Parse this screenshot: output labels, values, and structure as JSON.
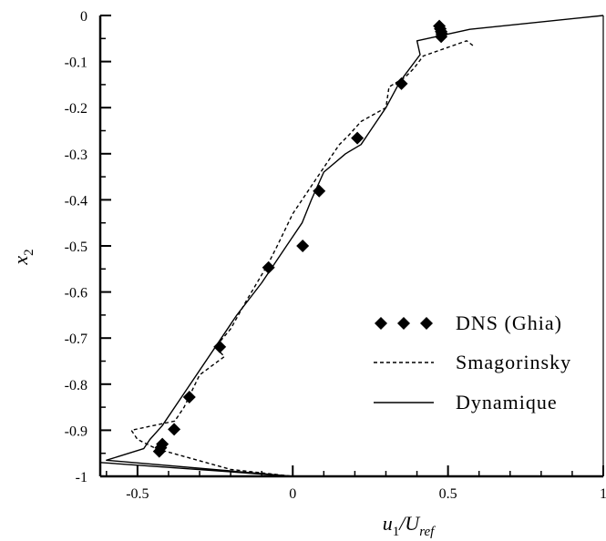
{
  "chart_data": {
    "type": "scatter",
    "title": "",
    "xlim": [
      -0.62,
      1.0
    ],
    "ylim": [
      -1.0,
      0.0
    ],
    "x_ticks": [
      -0.5,
      0,
      0.5,
      1
    ],
    "x_tick_labels": [
      "-0.5",
      "0",
      "0.5",
      "1"
    ],
    "y_ticks": [
      0,
      -0.1,
      -0.2,
      -0.3,
      -0.4,
      -0.5,
      -0.6,
      -0.7,
      -0.8,
      -0.9,
      -1
    ],
    "y_tick_labels": [
      "0",
      "-0.1",
      "-0.2",
      "-0.3",
      "-0.4",
      "-0.5",
      "-0.6",
      "-0.7",
      "-0.8",
      "-0.9",
      "-1"
    ],
    "xlabel": {
      "main": "u",
      "sub1": "1",
      "mid": "/U",
      "sub2": "ref"
    },
    "ylabel": {
      "main": "x",
      "sub": "2"
    },
    "grid": false,
    "legend_position": "right",
    "series": [
      {
        "name": "DNS (Ghia)",
        "style": "markers",
        "marker": "diamond",
        "points": [
          [
            0.472,
            -0.023
          ],
          [
            0.475,
            -0.029
          ],
          [
            0.478,
            -0.035
          ],
          [
            0.48,
            -0.04
          ],
          [
            0.478,
            -0.046
          ],
          [
            0.35,
            -0.148
          ],
          [
            0.208,
            -0.266
          ],
          [
            0.085,
            -0.381
          ],
          [
            0.032,
            -0.5
          ],
          [
            -0.078,
            -0.547
          ],
          [
            -0.235,
            -0.719
          ],
          [
            -0.333,
            -0.828
          ],
          [
            -0.382,
            -0.898
          ],
          [
            -0.42,
            -0.93
          ],
          [
            -0.425,
            -0.938
          ],
          [
            -0.43,
            -0.946
          ]
        ]
      },
      {
        "name": "Smagorinsky",
        "style": "dashed",
        "points": [
          [
            0.58,
            -0.065
          ],
          [
            0.56,
            -0.055
          ],
          [
            0.42,
            -0.088
          ],
          [
            0.39,
            -0.115
          ],
          [
            0.36,
            -0.135
          ],
          [
            0.31,
            -0.155
          ],
          [
            0.3,
            -0.2
          ],
          [
            0.22,
            -0.23
          ],
          [
            0.18,
            -0.26
          ],
          [
            0.15,
            -0.28
          ],
          [
            0.12,
            -0.31
          ],
          [
            0.08,
            -0.35
          ],
          [
            0.05,
            -0.38
          ],
          [
            0.0,
            -0.43
          ],
          [
            -0.05,
            -0.5
          ],
          [
            -0.08,
            -0.54
          ],
          [
            -0.15,
            -0.62
          ],
          [
            -0.2,
            -0.68
          ],
          [
            -0.25,
            -0.72
          ],
          [
            -0.22,
            -0.74
          ],
          [
            -0.3,
            -0.78
          ],
          [
            -0.35,
            -0.85
          ],
          [
            -0.38,
            -0.88
          ],
          [
            -0.52,
            -0.9
          ],
          [
            -0.5,
            -0.92
          ],
          [
            -0.44,
            -0.94
          ],
          [
            -0.2,
            -0.985
          ],
          [
            0.0,
            -1.0
          ]
        ]
      },
      {
        "name": "Dynamique",
        "style": "solid",
        "points": [
          [
            1.0,
            0.0
          ],
          [
            0.57,
            -0.03
          ],
          [
            0.55,
            -0.033
          ],
          [
            0.4,
            -0.055
          ],
          [
            0.41,
            -0.085
          ],
          [
            0.36,
            -0.13
          ],
          [
            0.34,
            -0.15
          ],
          [
            0.3,
            -0.2
          ],
          [
            0.25,
            -0.25
          ],
          [
            0.22,
            -0.28
          ],
          [
            0.17,
            -0.3
          ],
          [
            0.1,
            -0.34
          ],
          [
            0.06,
            -0.4
          ],
          [
            0.03,
            -0.45
          ],
          [
            -0.02,
            -0.5
          ],
          [
            -0.1,
            -0.58
          ],
          [
            -0.18,
            -0.65
          ],
          [
            -0.25,
            -0.72
          ],
          [
            -0.35,
            -0.82
          ],
          [
            -0.42,
            -0.89
          ],
          [
            -0.46,
            -0.92
          ],
          [
            -0.48,
            -0.94
          ],
          [
            -0.6,
            -0.965
          ],
          [
            0.0,
            -1.0
          ],
          [
            -0.62,
            -0.97
          ]
        ]
      }
    ]
  }
}
